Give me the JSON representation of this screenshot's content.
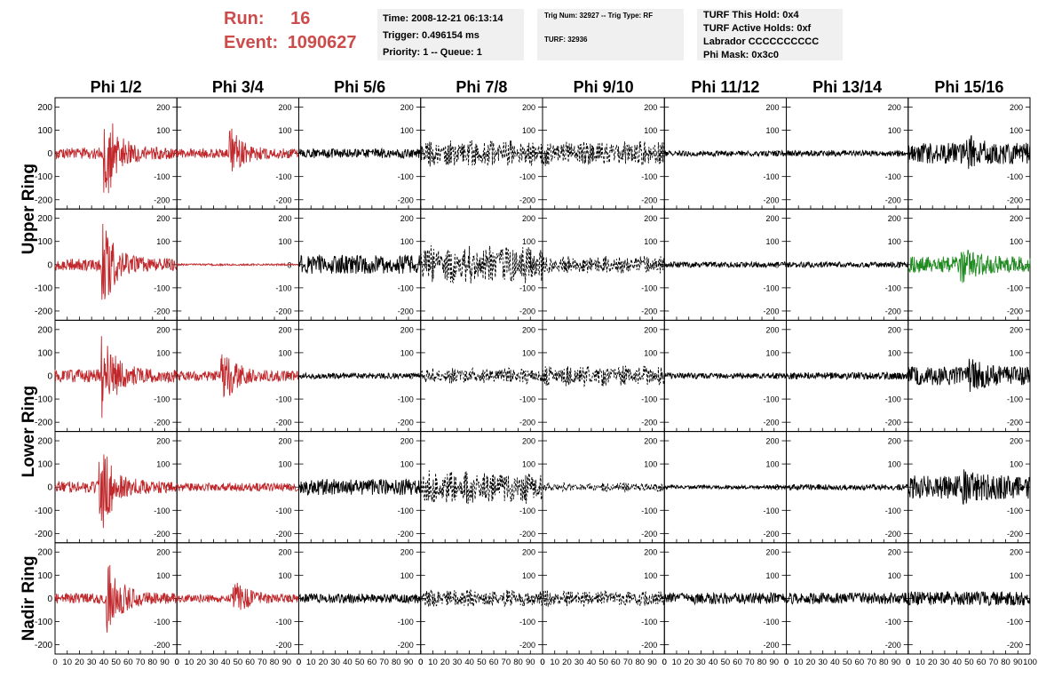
{
  "header": {
    "run_label": "Run:",
    "run_value": "16",
    "event_label": "Event:",
    "event_value": "1090627",
    "run_color": "#cc4c4c"
  },
  "info": {
    "time": "Time: 2008-12-21 06:13:14",
    "trigger": "Trigger: 0.496154 ms",
    "priority": "Priority: 1 -- Queue: 1",
    "trig_num": "Trig Num: 32927 -- Trig Type: RF",
    "turf": "TURF: 32936",
    "turf_hold": "TURF This Hold: 0x4",
    "turf_active": "TURF Active Holds: 0xf",
    "labrador": "Labrador CCCCCCCCCC",
    "phi_mask": "Phi Mask: 0x3c0"
  },
  "chart_data": {
    "type": "line",
    "columns": [
      "Phi 1/2",
      "Phi 3/4",
      "Phi 5/6",
      "Phi 7/8",
      "Phi 9/10",
      "Phi 11/12",
      "Phi 13/14",
      "Phi 15/16"
    ],
    "rows": [
      "Upper Ring",
      "Lower Ring",
      "Nadir Ring"
    ],
    "row_label_spans": [
      [
        0,
        1
      ],
      [
        2,
        3
      ],
      [
        4,
        4
      ]
    ],
    "panel_rows": 5,
    "xlim": [
      0,
      100
    ],
    "ylim": [
      -240,
      240
    ],
    "x_ticks": [
      0,
      10,
      20,
      30,
      40,
      50,
      60,
      70,
      80,
      90,
      100
    ],
    "x_tick_labels": [
      "0",
      "10",
      "20",
      "30",
      "40",
      "50",
      "60",
      "70",
      "80",
      "90",
      "100"
    ],
    "y_ticks": [
      200,
      100,
      0,
      -100,
      -200
    ],
    "y_tick_labels": [
      "200",
      "100",
      "0",
      "-100",
      "-200"
    ],
    "colors": {
      "red": "#c0282c",
      "black": "#000000",
      "green": "#1f8a1f"
    },
    "styles": [
      [
        "red",
        "red",
        "black",
        "dashed",
        "dashed",
        "black",
        "black",
        "black"
      ],
      [
        "red",
        "red",
        "black",
        "dashed",
        "dashed",
        "black",
        "black",
        "green"
      ],
      [
        "red",
        "red",
        "black",
        "dashed",
        "dashed",
        "black",
        "black",
        "black"
      ],
      [
        "red",
        "red",
        "black",
        "dashed",
        "dashed",
        "black",
        "black",
        "black"
      ],
      [
        "red",
        "red",
        "black",
        "dashed",
        "dashed",
        "black",
        "black",
        "black"
      ]
    ],
    "noise_amp": [
      [
        25,
        20,
        20,
        60,
        55,
        12,
        12,
        45
      ],
      [
        25,
        4,
        40,
        85,
        40,
        12,
        12,
        35
      ],
      [
        28,
        22,
        12,
        35,
        45,
        12,
        15,
        40
      ],
      [
        25,
        18,
        35,
        75,
        20,
        8,
        12,
        50
      ],
      [
        22,
        18,
        20,
        40,
        35,
        25,
        25,
        30
      ]
    ],
    "burst": [
      [
        [
          42,
          180
        ],
        [
          45,
          90
        ],
        null,
        null,
        null,
        null,
        null,
        [
          50,
          40
        ]
      ],
      [
        [
          40,
          170
        ],
        null,
        null,
        null,
        null,
        null,
        null,
        [
          45,
          50
        ]
      ],
      [
        [
          40,
          160
        ],
        [
          38,
          110
        ],
        null,
        null,
        null,
        null,
        null,
        [
          52,
          40
        ]
      ],
      [
        [
          38,
          200
        ],
        null,
        null,
        null,
        null,
        null,
        null,
        [
          46,
          30
        ]
      ],
      [
        [
          44,
          150
        ],
        [
          48,
          60
        ],
        null,
        null,
        null,
        null,
        null,
        null
      ]
    ]
  }
}
